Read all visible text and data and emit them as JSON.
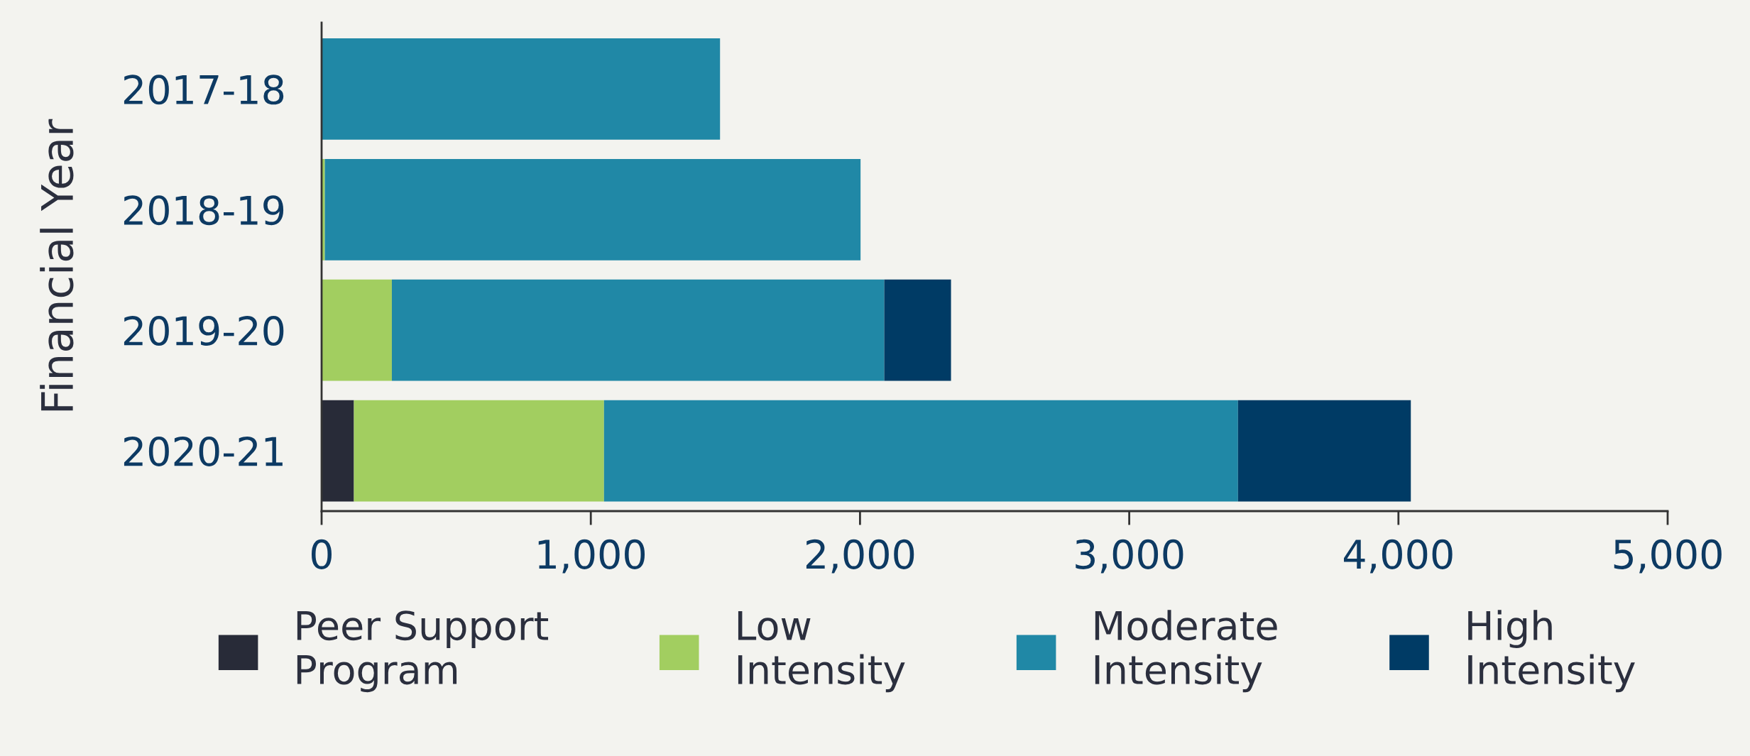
{
  "chart_data": {
    "type": "bar",
    "orientation": "horizontal",
    "stacked": true,
    "ylabel": "Financial Year",
    "categories": [
      "2017-18",
      "2018-19",
      "2019-20",
      "2020-21"
    ],
    "series": [
      {
        "name": "Peer Support\nProgram",
        "color": "#282b38",
        "values": [
          0,
          0,
          0,
          120
        ]
      },
      {
        "name": "Low\nIntensity",
        "color": "#a2ce60",
        "values": [
          0,
          12,
          261,
          929
        ]
      },
      {
        "name": "Moderate\nIntensity",
        "color": "#2088a6",
        "values": [
          1480,
          1990,
          1829,
          2355
        ]
      },
      {
        "name": "High\nIntensity",
        "color": "#003b65",
        "values": [
          0,
          0,
          248,
          642
        ]
      }
    ],
    "xlim": [
      0,
      5000
    ],
    "xticks": [
      0,
      {
        "value": 1000,
        "label": "1,000"
      },
      {
        "value": 2000,
        "label": "2,000"
      },
      {
        "value": 3000,
        "label": "3,000"
      },
      {
        "value": 4000,
        "label": "4,000"
      },
      {
        "value": 5000,
        "label": "5,000"
      }
    ],
    "grid": false,
    "legend": "bottom"
  }
}
